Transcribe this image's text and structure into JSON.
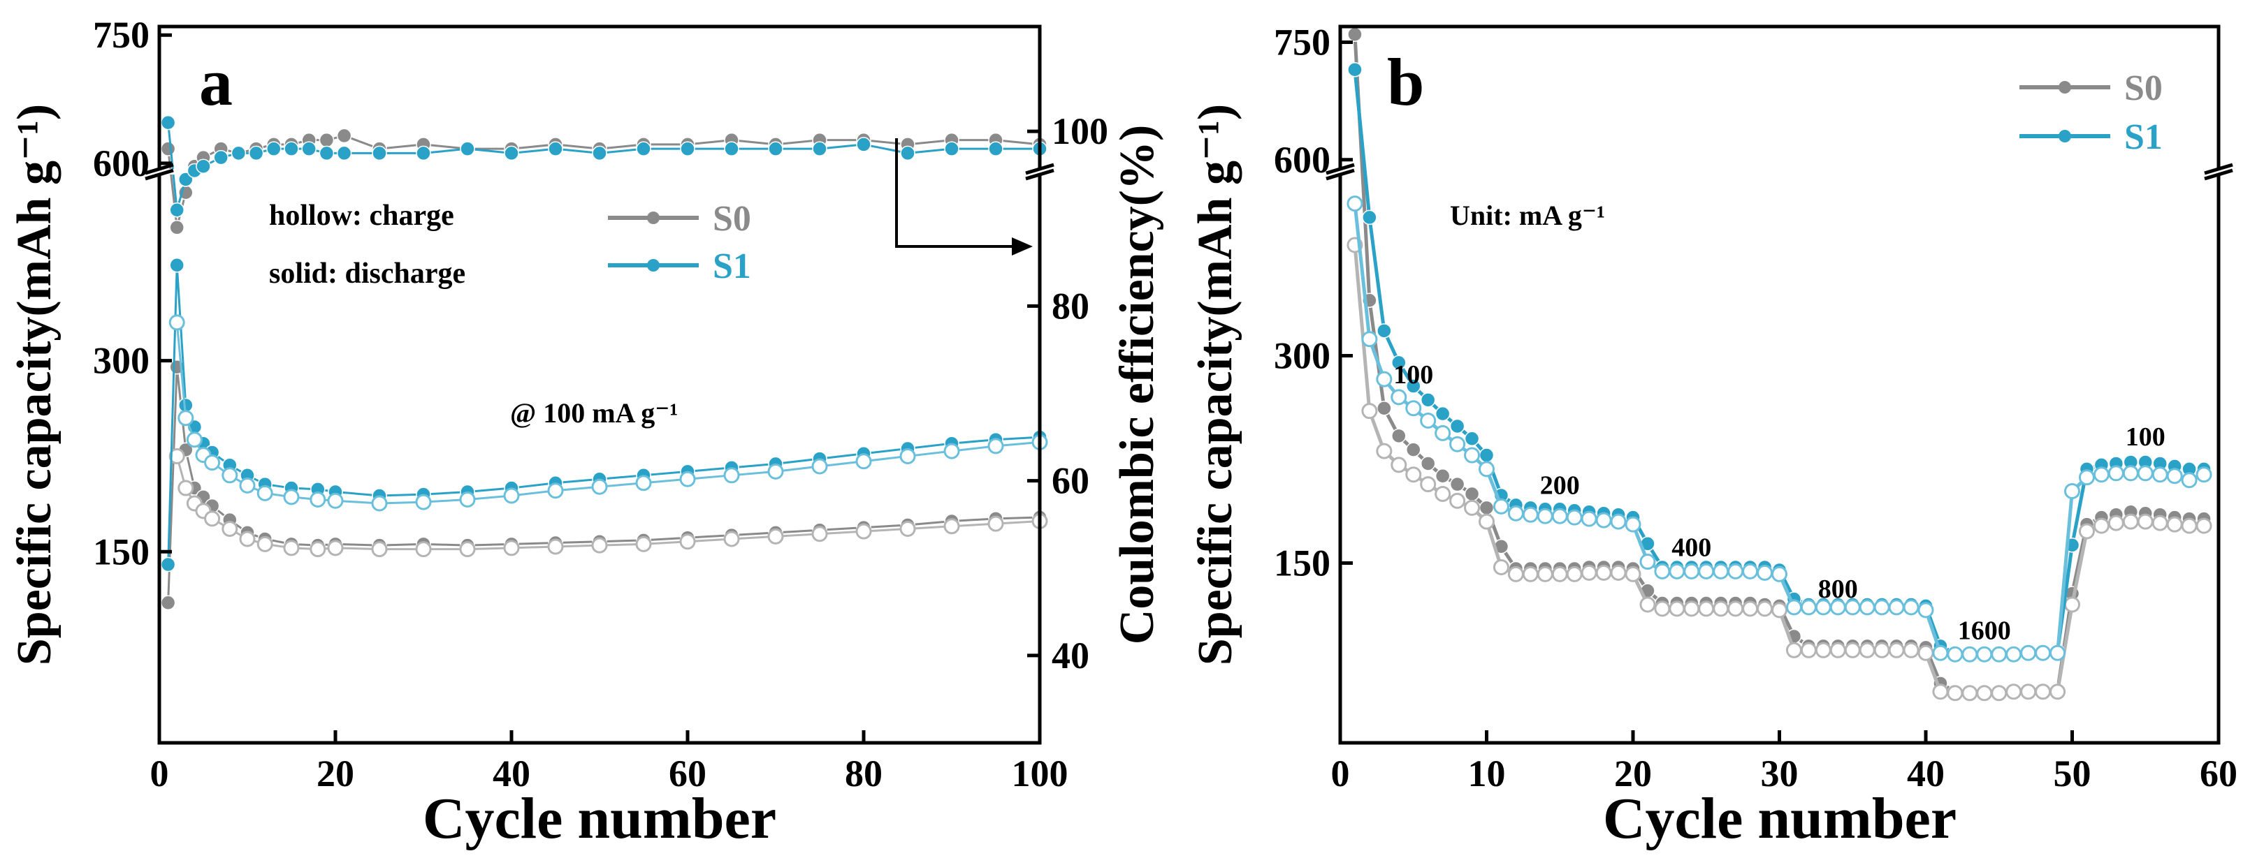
{
  "colors": {
    "s0": "#8a8a8a",
    "s1": "#2aa2c8",
    "s0_hollow": "#b4b4b4",
    "s1_hollow": "#6ac0dc",
    "axis": "#000000"
  },
  "chart_data": [
    {
      "type": "line",
      "panel_label": "a",
      "xlabel": "Cycle number",
      "ylabel": "Specific capacity(mAh g⁻¹)",
      "y2label": "Coulombic efficiency(%)",
      "xlim": [
        0,
        100
      ],
      "x_ticks": [
        0,
        20,
        40,
        60,
        80,
        100
      ],
      "ylim": [
        0,
        760
      ],
      "y_axis_break": [
        445,
        595
      ],
      "y_ticks": [
        150,
        300,
        600,
        750
      ],
      "y2lim": [
        30,
        112
      ],
      "y2_ticks": [
        40,
        60,
        80,
        100
      ],
      "legend": [
        "S0",
        "S1"
      ],
      "legend_position": "top-center",
      "annotations": {
        "mode_charge": "hollow: charge",
        "mode_discharge": "solid: discharge",
        "rate": "@ 100 mA g⁻¹"
      },
      "series": [
        {
          "name": "S0",
          "kind": "discharge",
          "axis": "capacity",
          "x": [
            1,
            2,
            3,
            4,
            5,
            6,
            8,
            10,
            12,
            15,
            18,
            20,
            25,
            30,
            35,
            40,
            45,
            50,
            55,
            60,
            65,
            70,
            75,
            80,
            85,
            90,
            95,
            100
          ],
          "values": [
            110,
            295,
            230,
            200,
            193,
            186,
            175,
            165,
            160,
            156,
            155,
            156,
            155,
            156,
            155,
            156,
            157,
            158,
            159,
            161,
            163,
            165,
            167,
            169,
            171,
            174,
            176,
            177
          ]
        },
        {
          "name": "S0",
          "kind": "charge",
          "axis": "capacity",
          "x": [
            2,
            3,
            4,
            5,
            6,
            8,
            10,
            12,
            15,
            18,
            20,
            25,
            30,
            35,
            40,
            45,
            50,
            55,
            60,
            65,
            70,
            75,
            80,
            85,
            90,
            95,
            100
          ],
          "values": [
            225,
            200,
            188,
            182,
            176,
            168,
            160,
            156,
            153,
            152,
            153,
            152,
            152,
            152,
            153,
            154,
            155,
            156,
            158,
            160,
            162,
            164,
            166,
            168,
            170,
            172,
            174
          ]
        },
        {
          "name": "S1",
          "kind": "discharge",
          "axis": "capacity",
          "x": [
            1,
            2,
            3,
            4,
            5,
            6,
            8,
            10,
            12,
            15,
            18,
            20,
            25,
            30,
            35,
            40,
            45,
            50,
            55,
            60,
            65,
            70,
            75,
            80,
            85,
            90,
            95,
            100
          ],
          "values": [
            140,
            375,
            265,
            248,
            235,
            228,
            218,
            210,
            203,
            200,
            199,
            197,
            194,
            195,
            197,
            200,
            204,
            207,
            210,
            213,
            216,
            219,
            223,
            227,
            231,
            235,
            238,
            240
          ]
        },
        {
          "name": "S1",
          "kind": "charge",
          "axis": "capacity",
          "x": [
            2,
            3,
            4,
            5,
            6,
            8,
            10,
            12,
            15,
            18,
            20,
            25,
            30,
            35,
            40,
            45,
            50,
            55,
            60,
            65,
            70,
            75,
            80,
            85,
            90,
            95,
            100
          ],
          "values": [
            330,
            255,
            238,
            226,
            220,
            210,
            202,
            196,
            193,
            191,
            190,
            188,
            189,
            191,
            194,
            198,
            201,
            204,
            207,
            210,
            213,
            217,
            221,
            225,
            229,
            233,
            236
          ]
        },
        {
          "name": "S0",
          "kind": "efficiency",
          "axis": "efficiency",
          "x": [
            1,
            2,
            3,
            4,
            5,
            7,
            9,
            11,
            13,
            15,
            17,
            19,
            21,
            25,
            30,
            35,
            40,
            45,
            50,
            55,
            60,
            65,
            70,
            75,
            80,
            85,
            90,
            95,
            100
          ],
          "values": [
            98,
            89,
            93,
            96,
            97,
            98,
            97.5,
            98,
            98.5,
            98.5,
            99,
            99,
            99.5,
            98,
            98.5,
            98,
            98,
            98.5,
            98,
            98.5,
            98.5,
            99,
            98.5,
            99,
            99,
            98.5,
            99,
            99,
            98.5
          ]
        },
        {
          "name": "S1",
          "kind": "efficiency",
          "axis": "efficiency",
          "x": [
            1,
            2,
            3,
            4,
            5,
            7,
            9,
            11,
            13,
            15,
            17,
            19,
            21,
            25,
            30,
            35,
            40,
            45,
            50,
            55,
            60,
            65,
            70,
            75,
            80,
            85,
            90,
            95,
            100
          ],
          "values": [
            101,
            91,
            94.5,
            95.5,
            96,
            97,
            97.5,
            97.5,
            98,
            98,
            98,
            97.5,
            97.5,
            97.5,
            97.5,
            98,
            97.5,
            98,
            97.5,
            98,
            98,
            98,
            98,
            98,
            98.5,
            97.5,
            98,
            98,
            98
          ]
        }
      ]
    },
    {
      "type": "line",
      "panel_label": "b",
      "xlabel": "Cycle number",
      "ylabel": "Specific capacity(mAh g⁻¹)",
      "xlim": [
        0,
        60
      ],
      "x_ticks": [
        0,
        10,
        20,
        30,
        40,
        50,
        60
      ],
      "ylim": [
        20,
        770
      ],
      "y_axis_break": [
        430,
        590
      ],
      "y_ticks": [
        150,
        300,
        600,
        750
      ],
      "legend": [
        "S0",
        "S1"
      ],
      "legend_position": "top-right",
      "annotations": {
        "unit": "Unit: mA g⁻¹"
      },
      "rate_labels": [
        {
          "text": "100",
          "cycle": 5,
          "capacity": 280
        },
        {
          "text": "200",
          "cycle": 15,
          "capacity": 200
        },
        {
          "text": "400",
          "cycle": 24,
          "capacity": 155
        },
        {
          "text": "800",
          "cycle": 34,
          "capacity": 125
        },
        {
          "text": "1600",
          "cycle": 44,
          "capacity": 95
        },
        {
          "text": "100",
          "cycle": 55,
          "capacity": 235
        }
      ],
      "series": [
        {
          "name": "S0",
          "kind": "discharge",
          "x": [
            1,
            2,
            3,
            4,
            5,
            6,
            7,
            8,
            9,
            10,
            11,
            12,
            13,
            14,
            15,
            16,
            17,
            18,
            19,
            20,
            21,
            22,
            23,
            24,
            25,
            26,
            27,
            28,
            29,
            30,
            31,
            32,
            33,
            34,
            35,
            36,
            37,
            38,
            39,
            40,
            41,
            42,
            43,
            44,
            45,
            46,
            47,
            48,
            49,
            50,
            51,
            52,
            53,
            54,
            55,
            56,
            57,
            58,
            59
          ],
          "values": [
            760,
            340,
            262,
            242,
            232,
            222,
            213,
            207,
            200,
            190,
            162,
            146,
            146,
            146,
            146,
            146,
            147,
            147,
            147,
            146,
            130,
            121,
            121,
            121,
            121,
            121,
            121,
            121,
            120,
            119,
            97,
            90,
            90,
            90,
            90,
            90,
            90,
            90,
            90,
            89,
            63,
            57,
            57,
            57,
            57,
            58,
            58,
            58,
            58,
            128,
            178,
            183,
            185,
            187,
            186,
            185,
            183,
            182,
            182
          ]
        },
        {
          "name": "S0",
          "kind": "charge",
          "x": [
            1,
            2,
            3,
            4,
            5,
            6,
            7,
            8,
            9,
            10,
            11,
            12,
            13,
            14,
            15,
            16,
            17,
            18,
            19,
            20,
            21,
            22,
            23,
            24,
            25,
            26,
            27,
            28,
            29,
            30,
            31,
            32,
            33,
            34,
            35,
            36,
            37,
            38,
            39,
            40,
            41,
            42,
            43,
            44,
            45,
            46,
            47,
            48,
            49,
            50,
            51,
            52,
            53,
            54,
            55,
            56,
            57,
            58,
            59
          ],
          "values": [
            380,
            260,
            231,
            221,
            214,
            207,
            200,
            195,
            190,
            180,
            147,
            142,
            142,
            142,
            142,
            142,
            143,
            143,
            143,
            142,
            120,
            117,
            117,
            117,
            117,
            117,
            117,
            117,
            117,
            116,
            87,
            87,
            87,
            87,
            87,
            87,
            87,
            87,
            87,
            85,
            57,
            56,
            56,
            56,
            56,
            57,
            57,
            57,
            57,
            120,
            173,
            177,
            179,
            180,
            180,
            179,
            178,
            177,
            177
          ]
        },
        {
          "name": "S1",
          "kind": "discharge",
          "x": [
            1,
            2,
            3,
            4,
            5,
            6,
            7,
            8,
            9,
            10,
            11,
            12,
            13,
            14,
            15,
            16,
            17,
            18,
            19,
            20,
            21,
            22,
            23,
            24,
            25,
            26,
            27,
            28,
            29,
            30,
            31,
            32,
            33,
            34,
            35,
            36,
            37,
            38,
            39,
            40,
            41,
            42,
            43,
            44,
            45,
            46,
            47,
            48,
            49,
            50,
            51,
            52,
            53,
            54,
            55,
            56,
            57,
            58,
            59
          ],
          "values": [
            715,
            400,
            318,
            295,
            278,
            268,
            258,
            249,
            240,
            228,
            199,
            192,
            190,
            189,
            189,
            188,
            187,
            186,
            185,
            183,
            164,
            147,
            147,
            147,
            147,
            147,
            147,
            147,
            147,
            145,
            124,
            120,
            120,
            120,
            120,
            120,
            120,
            120,
            120,
            119,
            90,
            85,
            85,
            85,
            85,
            85,
            86,
            86,
            86,
            163,
            218,
            221,
            222,
            223,
            223,
            222,
            220,
            218,
            218
          ]
        },
        {
          "name": "S1",
          "kind": "charge",
          "x": [
            1,
            2,
            3,
            4,
            5,
            6,
            7,
            8,
            9,
            10,
            11,
            12,
            13,
            14,
            15,
            16,
            17,
            18,
            19,
            20,
            21,
            22,
            23,
            24,
            25,
            26,
            27,
            28,
            29,
            30,
            31,
            32,
            33,
            34,
            35,
            36,
            37,
            38,
            39,
            40,
            41,
            42,
            43,
            44,
            45,
            46,
            47,
            48,
            49,
            50,
            51,
            52,
            53,
            54,
            55,
            56,
            57,
            58,
            59
          ],
          "values": [
            410,
            312,
            283,
            270,
            262,
            253,
            244,
            236,
            228,
            218,
            191,
            186,
            185,
            184,
            184,
            183,
            182,
            181,
            180,
            178,
            151,
            144,
            144,
            144,
            144,
            144,
            144,
            144,
            143,
            142,
            118,
            118,
            118,
            118,
            118,
            118,
            118,
            118,
            118,
            116,
            85,
            84,
            84,
            84,
            84,
            84,
            85,
            85,
            85,
            202,
            212,
            214,
            215,
            215,
            215,
            214,
            213,
            210,
            214
          ]
        }
      ]
    }
  ]
}
